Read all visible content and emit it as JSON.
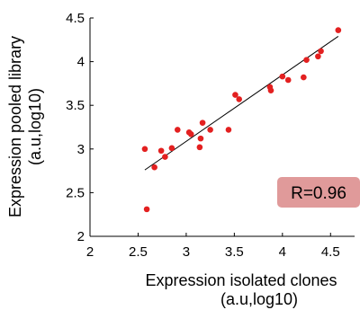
{
  "chart_data": {
    "type": "scatter",
    "xlabel_line1": "Expression isolated clones",
    "xlabel_line2": "(a.u,log10)",
    "ylabel_line1": "Expression pooled library",
    "ylabel_line2": "(a.u,log10)",
    "xlim": [
      2,
      4.75
    ],
    "ylim": [
      2,
      4.5
    ],
    "xticks": [
      "2",
      "2.5",
      "3",
      "3.5",
      "4",
      "4.5"
    ],
    "yticks": [
      "2",
      "2.5",
      "3",
      "3.5",
      "4",
      "4.5"
    ],
    "points": [
      {
        "x": 2.57,
        "y": 3.0
      },
      {
        "x": 2.59,
        "y": 2.31
      },
      {
        "x": 2.67,
        "y": 2.79
      },
      {
        "x": 2.74,
        "y": 2.98
      },
      {
        "x": 2.78,
        "y": 2.91
      },
      {
        "x": 2.85,
        "y": 3.01
      },
      {
        "x": 2.91,
        "y": 3.22
      },
      {
        "x": 3.03,
        "y": 3.19
      },
      {
        "x": 3.05,
        "y": 3.17
      },
      {
        "x": 3.14,
        "y": 3.02
      },
      {
        "x": 3.15,
        "y": 3.12
      },
      {
        "x": 3.17,
        "y": 3.3
      },
      {
        "x": 3.25,
        "y": 3.22
      },
      {
        "x": 3.44,
        "y": 3.22
      },
      {
        "x": 3.51,
        "y": 3.62
      },
      {
        "x": 3.55,
        "y": 3.57
      },
      {
        "x": 3.87,
        "y": 3.71
      },
      {
        "x": 3.88,
        "y": 3.67
      },
      {
        "x": 4.0,
        "y": 3.83
      },
      {
        "x": 4.06,
        "y": 3.79
      },
      {
        "x": 4.22,
        "y": 3.82
      },
      {
        "x": 4.25,
        "y": 4.02
      },
      {
        "x": 4.37,
        "y": 4.06
      },
      {
        "x": 4.4,
        "y": 4.12
      },
      {
        "x": 4.58,
        "y": 4.36
      }
    ],
    "fit_line": {
      "x": [
        2.57,
        4.58
      ],
      "y": [
        2.76,
        4.29
      ]
    },
    "annotation": {
      "text": "R=0.96",
      "placement": "lower-right",
      "background": "#e09a9a"
    },
    "point_color": "#e32020",
    "line_color": "#000000",
    "grid": false
  }
}
